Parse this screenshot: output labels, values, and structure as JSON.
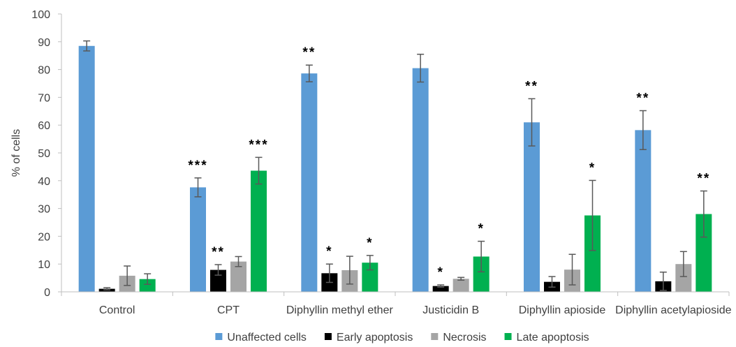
{
  "chart_data": {
    "type": "bar",
    "title": "",
    "xlabel": "",
    "ylabel": "% of cells",
    "ylim": [
      0,
      100
    ],
    "yticks": [
      0,
      10,
      20,
      30,
      40,
      50,
      60,
      70,
      80,
      90,
      100
    ],
    "grid": false,
    "legend_position": "bottom",
    "categories": [
      "Control",
      "CPT",
      "Diphyllin methyl ether",
      "Justicidin B",
      "Diphyllin apioside",
      "Diphyllin acetylapioside"
    ],
    "series": [
      {
        "name": "Unaffected cells",
        "color": "#5b9bd5",
        "values": [
          88.5,
          37.6,
          78.6,
          80.5,
          61.0,
          58.2
        ],
        "errors": [
          1.8,
          3.4,
          3.0,
          5.0,
          8.5,
          7.0
        ],
        "significance": [
          "",
          "***",
          "**",
          "",
          "**",
          "**"
        ]
      },
      {
        "name": "Early apoptosis",
        "color": "#000000",
        "values": [
          1.1,
          7.9,
          6.7,
          2.1,
          3.6,
          3.8
        ],
        "errors": [
          0.4,
          1.9,
          3.3,
          0.4,
          1.9,
          3.3
        ],
        "significance": [
          "",
          "**",
          "*",
          "*",
          "",
          ""
        ]
      },
      {
        "name": "Necrosis",
        "color": "#a5a5a5",
        "values": [
          5.8,
          10.9,
          7.8,
          4.7,
          8.0,
          10.0
        ],
        "errors": [
          3.5,
          1.8,
          5.0,
          0.5,
          5.5,
          4.5
        ],
        "significance": [
          "",
          "",
          "",
          "",
          "",
          ""
        ]
      },
      {
        "name": "Late apoptosis",
        "color": "#00b050",
        "values": [
          4.6,
          43.6,
          10.5,
          12.7,
          27.5,
          28.0
        ],
        "errors": [
          1.9,
          4.8,
          2.6,
          5.5,
          12.6,
          8.3
        ],
        "significance": [
          "",
          "***",
          "*",
          "*",
          "*",
          "**"
        ]
      }
    ]
  }
}
